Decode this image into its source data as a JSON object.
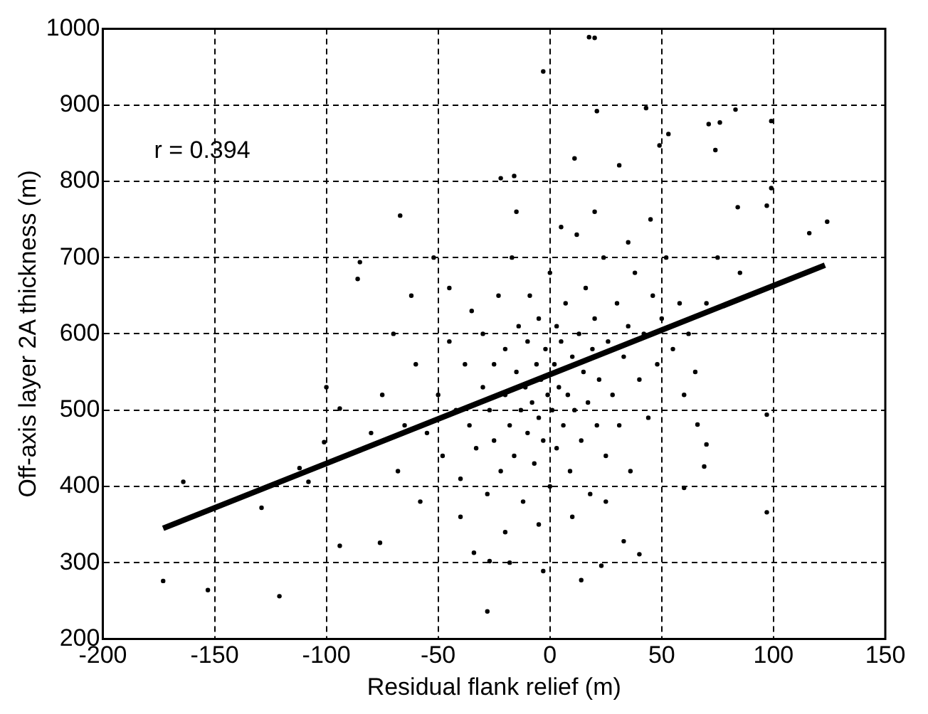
{
  "chart_data": {
    "type": "scatter",
    "xlabel": "Residual flank relief (m)",
    "ylabel": "Off-axis layer 2A thickness (m)",
    "xlim": [
      -200,
      150
    ],
    "ylim": [
      200,
      1000
    ],
    "xticks": [
      -200,
      -150,
      -100,
      -50,
      0,
      50,
      100,
      150
    ],
    "yticks": [
      200,
      300,
      400,
      500,
      600,
      700,
      800,
      900,
      1000
    ],
    "grid": true,
    "legend": false,
    "annotations": [
      "r = 0.394"
    ],
    "series": [
      {
        "type": "scatter",
        "marker": "circle",
        "color": "#000000",
        "x": [
          17.5,
          20,
          -3,
          21,
          43,
          83,
          71,
          76,
          99,
          53,
          49,
          74,
          -67,
          -22,
          -16,
          11,
          31,
          124,
          116,
          97,
          99,
          84,
          -85,
          -86,
          -100,
          -94,
          97,
          66,
          -173,
          -153,
          -121,
          -164,
          -129,
          -112,
          -108,
          -101,
          -94,
          -28,
          14,
          -3,
          23,
          97,
          33,
          40,
          70,
          69,
          -76,
          -34,
          -27,
          -18,
          60,
          -55,
          -50,
          -48,
          -45,
          -42,
          -40,
          -38,
          -36,
          -35,
          -33,
          -30,
          -30,
          -28,
          -27,
          -25,
          -25,
          -23,
          -22,
          -20,
          -20,
          -18,
          -17,
          -16,
          -15,
          -14,
          -13,
          -12,
          -11,
          -10,
          -10,
          -9,
          -8,
          -7,
          -6,
          -5,
          -5,
          -4,
          -3,
          -2,
          -1,
          0,
          0,
          1,
          2,
          3,
          3,
          4,
          5,
          6,
          7,
          8,
          9,
          10,
          11,
          12,
          13,
          14,
          15,
          16,
          17,
          18,
          19,
          20,
          21,
          22,
          24,
          25,
          26,
          28,
          30,
          31,
          33,
          35,
          36,
          38,
          40,
          42,
          44,
          46,
          48,
          50,
          52,
          55,
          58,
          60,
          62,
          65,
          -60,
          -65,
          -68,
          -70,
          -62,
          -52,
          -45,
          -75,
          -80,
          -58,
          -15,
          5,
          20,
          35,
          45,
          70,
          75,
          85,
          -5,
          10,
          25,
          -40,
          -20
        ],
        "values": [
          989,
          988,
          944,
          892,
          896,
          894,
          875,
          877,
          879,
          862,
          847,
          841,
          755,
          804,
          807,
          830,
          821,
          747,
          732,
          768,
          791,
          766,
          694,
          672,
          530,
          502,
          494,
          481,
          276,
          264,
          256,
          406,
          372,
          424,
          406,
          458,
          322,
          236,
          277,
          289,
          296,
          366,
          328,
          311,
          455,
          426,
          326,
          313,
          302,
          300,
          398,
          470,
          520,
          440,
          590,
          500,
          410,
          560,
          480,
          630,
          450,
          530,
          600,
          390,
          500,
          560,
          460,
          650,
          420,
          520,
          580,
          480,
          700,
          440,
          550,
          610,
          500,
          380,
          530,
          470,
          590,
          650,
          510,
          430,
          560,
          490,
          620,
          540,
          460,
          580,
          520,
          400,
          680,
          500,
          560,
          610,
          450,
          530,
          590,
          480,
          640,
          520,
          420,
          570,
          500,
          730,
          600,
          460,
          550,
          660,
          510,
          390,
          580,
          620,
          480,
          540,
          700,
          440,
          590,
          520,
          640,
          480,
          570,
          610,
          420,
          680,
          540,
          600,
          490,
          650,
          560,
          620,
          700,
          580,
          640,
          520,
          600,
          550,
          560,
          480,
          420,
          600,
          650,
          700,
          660,
          520,
          470,
          380,
          760,
          740,
          760,
          720,
          750,
          640,
          700,
          680,
          350,
          360,
          380,
          360,
          340
        ]
      },
      {
        "type": "line",
        "color": "#000000",
        "x": [
          -173,
          123
        ],
        "values": [
          345,
          690
        ]
      }
    ]
  }
}
